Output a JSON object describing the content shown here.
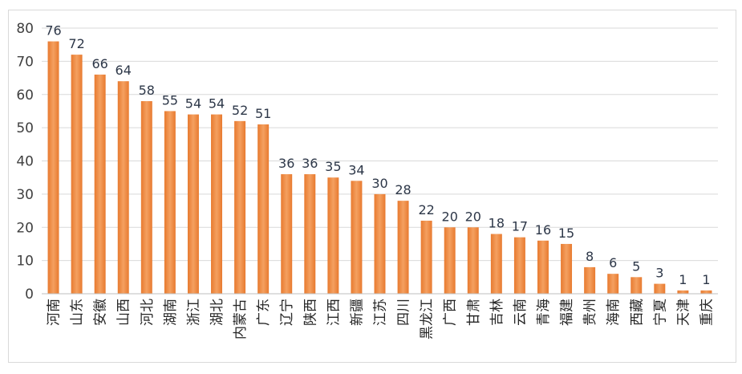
{
  "chart_data": {
    "type": "bar",
    "title": "",
    "xlabel": "",
    "ylabel": "",
    "ylim": [
      0,
      80
    ],
    "yticks": [
      0,
      10,
      20,
      30,
      40,
      50,
      60,
      70,
      80
    ],
    "grid": true,
    "legend": "none",
    "bar_color": "#E87A2F",
    "bar_color_light": "#F4A060",
    "categories": [
      "河南",
      "山东",
      "安徽",
      "山西",
      "河北",
      "湖南",
      "浙江",
      "湖北",
      "内蒙古",
      "广东",
      "辽宁",
      "陕西",
      "江西",
      "新疆",
      "江苏",
      "四川",
      "黑龙江",
      "广西",
      "甘肃",
      "吉林",
      "云南",
      "青海",
      "福建",
      "贵州",
      "海南",
      "西藏",
      "宁夏",
      "天津",
      "重庆"
    ],
    "values": [
      76,
      72,
      66,
      64,
      58,
      55,
      54,
      54,
      52,
      51,
      36,
      36,
      35,
      34,
      30,
      28,
      22,
      20,
      20,
      18,
      17,
      16,
      15,
      8,
      6,
      5,
      3,
      1,
      1
    ]
  }
}
